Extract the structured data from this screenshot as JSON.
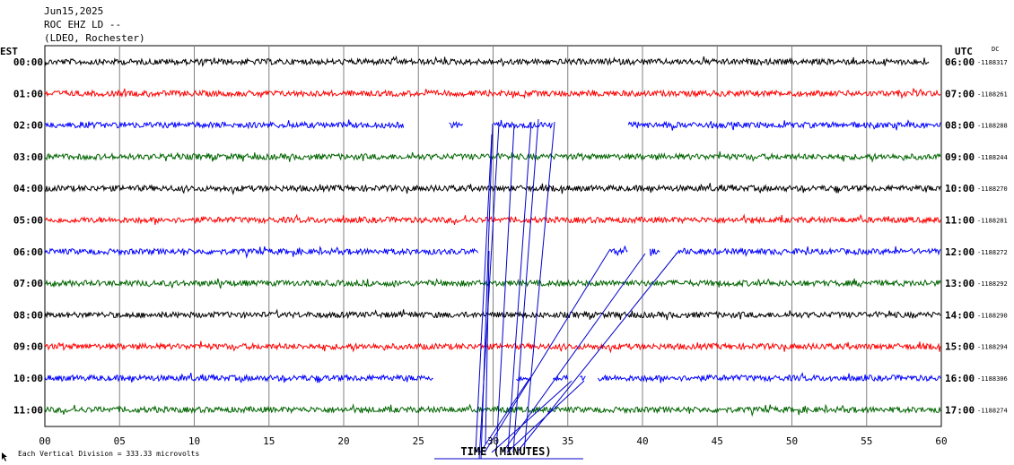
{
  "header": {
    "date": "Jun15,2025",
    "station": "ROC EHZ LD --",
    "network": "(LDEO, Rochester)"
  },
  "left_axis_label": "EST",
  "right_axis_label": "UTC",
  "dc_label": "DC",
  "footer_note": "Each Vertical Division =  333.33 microvolts",
  "footer_icon": "mouse-cursor-icon",
  "chart_data": {
    "type": "line",
    "xlabel": "TIME (MINUTES)",
    "xlim": [
      0,
      60
    ],
    "x_ticks": [
      "00",
      "05",
      "10",
      "15",
      "20",
      "25",
      "30",
      "35",
      "40",
      "45",
      "50",
      "55",
      "60"
    ],
    "rows": [
      {
        "est": "00:00",
        "utc": "06:00",
        "dc": "-1188317",
        "color": "#000000",
        "gaps": [
          [
            59.2,
            60
          ]
        ]
      },
      {
        "est": "01:00",
        "utc": "07:00",
        "dc": "-1188261",
        "color": "#ff0000",
        "gaps": []
      },
      {
        "est": "02:00",
        "utc": "08:00",
        "dc": "-1188288",
        "color": "#0000ff",
        "gaps": [
          [
            24,
            27
          ],
          [
            28,
            30
          ],
          [
            34,
            39
          ]
        ]
      },
      {
        "est": "03:00",
        "utc": "09:00",
        "dc": "-1188244",
        "color": "#006400",
        "gaps": []
      },
      {
        "est": "04:00",
        "utc": "10:00",
        "dc": "-1188270",
        "color": "#000000",
        "gaps": []
      },
      {
        "est": "05:00",
        "utc": "11:00",
        "dc": "-1188281",
        "color": "#ff0000",
        "gaps": []
      },
      {
        "est": "06:00",
        "utc": "12:00",
        "dc": "-1188272",
        "color": "#0000ff",
        "gaps": [
          [
            29,
            37.8
          ],
          [
            39,
            40.5
          ],
          [
            41.2,
            42.2
          ]
        ]
      },
      {
        "est": "07:00",
        "utc": "13:00",
        "dc": "-1188292",
        "color": "#006400",
        "gaps": []
      },
      {
        "est": "08:00",
        "utc": "14:00",
        "dc": "-1188290",
        "color": "#000000",
        "gaps": []
      },
      {
        "est": "09:00",
        "utc": "15:00",
        "dc": "-1188294",
        "color": "#ff0000",
        "gaps": []
      },
      {
        "est": "10:00",
        "utc": "16:00",
        "dc": "-1188306",
        "color": "#0000ff",
        "gaps": [
          [
            26,
            31.5
          ],
          [
            32.5,
            34
          ],
          [
            35,
            35.8
          ],
          [
            36.2,
            37
          ]
        ]
      },
      {
        "est": "11:00",
        "utc": "17:00",
        "dc": "-1188274",
        "color": "#006400",
        "gaps": []
      }
    ],
    "glitch_lines_color": "#0000cc",
    "grid": true
  }
}
